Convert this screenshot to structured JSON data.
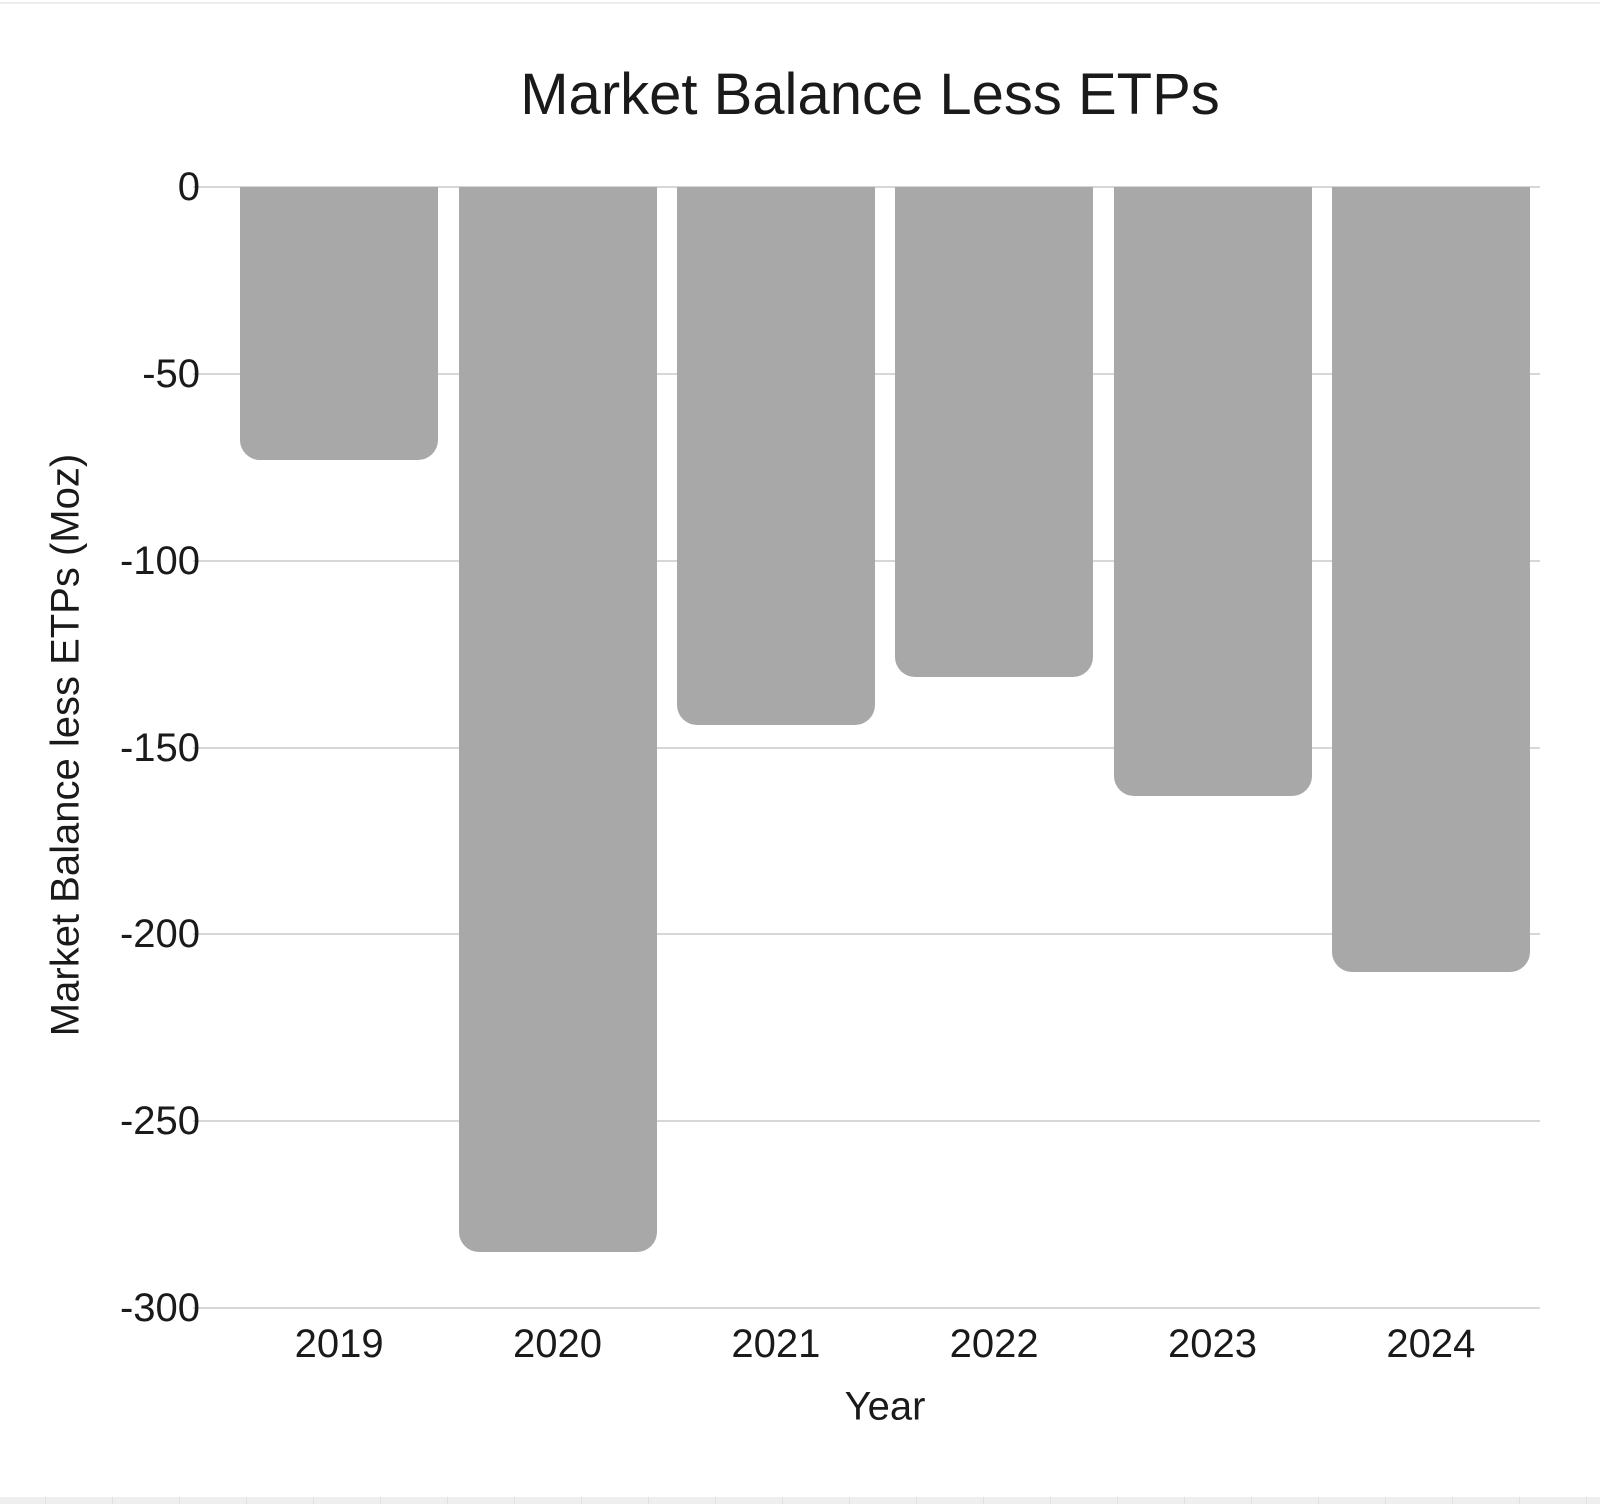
{
  "chart_data": {
    "type": "bar",
    "title": "Market Balance Less ETPs",
    "xlabel": "Year",
    "ylabel": "Market Balance less ETPs (Moz)",
    "categories": [
      "2019",
      "2020",
      "2021",
      "2022",
      "2023",
      "2024"
    ],
    "values": [
      -73,
      -285,
      -144,
      -131,
      -163,
      -210
    ],
    "ylim": [
      -300,
      0
    ],
    "yticks": [
      0,
      -50,
      -100,
      -150,
      -200,
      -250,
      -300
    ],
    "ytick_labels": [
      "0",
      "-50",
      "-100",
      "-150",
      "-200",
      "-250",
      "-300"
    ],
    "grid": "horizontal",
    "legend": "none",
    "colors": {
      "bar": "#a8a8a8",
      "gridline": "#d7d7d7",
      "text": "#1a1a1a",
      "background": "#ffffff"
    }
  }
}
